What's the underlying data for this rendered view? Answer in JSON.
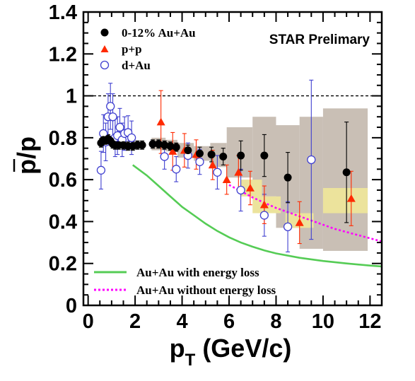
{
  "chart_data": {
    "type": "scatter",
    "annotation": "STAR Prelimary",
    "ylabel": "p/p",
    "xlabel_main": "p",
    "xlabel_sub": "T",
    "xlabel_rest": " (GeV/c)",
    "xlim": [
      -0.2,
      12.5
    ],
    "ylim": [
      0,
      1.4
    ],
    "xticks": [
      0,
      2,
      4,
      6,
      8,
      10,
      12
    ],
    "yticks": [
      0,
      0.2,
      0.4,
      0.6,
      0.8,
      1,
      1.2,
      1.4
    ],
    "ytick_labels": [
      "0",
      "0.2",
      "0.4",
      "0.6",
      "0.8",
      "1",
      "1.2",
      "1.4"
    ],
    "reference_line_y": 1.0,
    "grid": false,
    "legend_position": "top-left",
    "series": [
      {
        "name": "0-12% Au+Au",
        "marker": "filled-circle",
        "color": "#000000",
        "points": [
          {
            "x": 0.55,
            "y": 0.775,
            "err": 0.02
          },
          {
            "x": 0.65,
            "y": 0.79,
            "err": 0.02
          },
          {
            "x": 0.75,
            "y": 0.785,
            "err": 0.02
          },
          {
            "x": 0.85,
            "y": 0.795,
            "err": 0.02
          },
          {
            "x": 0.95,
            "y": 0.785,
            "err": 0.02
          },
          {
            "x": 1.05,
            "y": 0.77,
            "err": 0.02
          },
          {
            "x": 1.15,
            "y": 0.765,
            "err": 0.02
          },
          {
            "x": 1.3,
            "y": 0.765,
            "err": 0.02
          },
          {
            "x": 1.5,
            "y": 0.765,
            "err": 0.02
          },
          {
            "x": 1.7,
            "y": 0.76,
            "err": 0.02
          },
          {
            "x": 1.9,
            "y": 0.76,
            "err": 0.02
          },
          {
            "x": 2.1,
            "y": 0.765,
            "err": 0.02
          },
          {
            "x": 2.3,
            "y": 0.765,
            "err": 0.02
          },
          {
            "x": 2.75,
            "y": 0.77,
            "err": 0.02
          },
          {
            "x": 3.0,
            "y": 0.77,
            "err": 0.02
          },
          {
            "x": 3.25,
            "y": 0.765,
            "err": 0.02
          },
          {
            "x": 3.5,
            "y": 0.76,
            "err": 0.02
          },
          {
            "x": 3.75,
            "y": 0.755,
            "err": 0.02
          },
          {
            "x": 4.25,
            "y": 0.74,
            "err": 0.025
          },
          {
            "x": 4.75,
            "y": 0.725,
            "err": 0.03
          },
          {
            "x": 5.25,
            "y": 0.72,
            "err": 0.035
          },
          {
            "x": 5.75,
            "y": 0.71,
            "err": 0.04
          },
          {
            "x": 6.5,
            "y": 0.715,
            "err": 0.07
          },
          {
            "x": 7.5,
            "y": 0.715,
            "err": 0.1
          },
          {
            "x": 8.5,
            "y": 0.61,
            "err": 0.12
          },
          {
            "x": 11.0,
            "y": 0.635,
            "err": 0.24
          }
        ]
      },
      {
        "name": "p+p",
        "marker": "filled-triangle",
        "color": "#ff2a00",
        "points": [
          {
            "x": 3.1,
            "y": 0.875,
            "err": 0.15
          },
          {
            "x": 3.6,
            "y": 0.735,
            "err": 0.09
          },
          {
            "x": 4.1,
            "y": 0.74,
            "err": 0.08
          },
          {
            "x": 4.6,
            "y": 0.72,
            "err": 0.07
          },
          {
            "x": 5.3,
            "y": 0.67,
            "err": 0.07
          },
          {
            "x": 5.9,
            "y": 0.6,
            "err": 0.07
          },
          {
            "x": 6.4,
            "y": 0.635,
            "err": 0.08
          },
          {
            "x": 6.9,
            "y": 0.56,
            "err": 0.08
          },
          {
            "x": 7.5,
            "y": 0.48,
            "err": 0.09
          },
          {
            "x": 9.0,
            "y": 0.395,
            "err": 0.1
          },
          {
            "x": 11.2,
            "y": 0.51,
            "err": 0.13
          }
        ]
      },
      {
        "name": "d+Au",
        "marker": "open-circle",
        "color": "#4040d0",
        "points": [
          {
            "x": 0.55,
            "y": 0.645,
            "err": 0.09
          },
          {
            "x": 0.65,
            "y": 0.82,
            "err": 0.09
          },
          {
            "x": 0.75,
            "y": 0.78,
            "err": 0.09
          },
          {
            "x": 0.85,
            "y": 0.9,
            "err": 0.11
          },
          {
            "x": 0.95,
            "y": 0.95,
            "err": 0.11
          },
          {
            "x": 1.05,
            "y": 0.9,
            "err": 0.11
          },
          {
            "x": 1.15,
            "y": 0.8,
            "err": 0.09
          },
          {
            "x": 1.25,
            "y": 0.81,
            "err": 0.09
          },
          {
            "x": 1.35,
            "y": 0.85,
            "err": 0.09
          },
          {
            "x": 1.45,
            "y": 0.79,
            "err": 0.08
          },
          {
            "x": 1.55,
            "y": 0.82,
            "err": 0.08
          },
          {
            "x": 1.7,
            "y": 0.825,
            "err": 0.08
          },
          {
            "x": 1.85,
            "y": 0.8,
            "err": 0.08
          },
          {
            "x": 3.25,
            "y": 0.71,
            "err": 0.06
          },
          {
            "x": 3.75,
            "y": 0.65,
            "err": 0.06
          },
          {
            "x": 4.25,
            "y": 0.715,
            "err": 0.06
          },
          {
            "x": 4.75,
            "y": 0.685,
            "err": 0.06
          },
          {
            "x": 5.5,
            "y": 0.635,
            "err": 0.08
          },
          {
            "x": 6.5,
            "y": 0.55,
            "err": 0.1
          },
          {
            "x": 7.5,
            "y": 0.43,
            "err": 0.1
          },
          {
            "x": 8.5,
            "y": 0.375,
            "err": 0.12
          },
          {
            "x": 9.5,
            "y": 0.695,
            "err": 0.38
          }
        ]
      }
    ],
    "systematic_boxes_gray": [
      {
        "x1": 2.7,
        "x2": 3.3,
        "ylow": 0.74,
        "yhigh": 0.8
      },
      {
        "x1": 3.3,
        "x2": 3.8,
        "ylow": 0.735,
        "yhigh": 0.79
      },
      {
        "x1": 3.8,
        "x2": 4.5,
        "ylow": 0.705,
        "yhigh": 0.775
      },
      {
        "x1": 4.5,
        "x2": 5.2,
        "ylow": 0.69,
        "yhigh": 0.76
      },
      {
        "x1": 5.2,
        "x2": 5.9,
        "ylow": 0.66,
        "yhigh": 0.775
      },
      {
        "x1": 5.9,
        "x2": 7.0,
        "ylow": 0.61,
        "yhigh": 0.85
      },
      {
        "x1": 7.0,
        "x2": 8.0,
        "ylow": 0.52,
        "yhigh": 0.9
      },
      {
        "x1": 8.0,
        "x2": 9.0,
        "ylow": 0.37,
        "yhigh": 0.86
      },
      {
        "x1": 9.0,
        "x2": 10.0,
        "ylow": 0.27,
        "yhigh": 0.9
      },
      {
        "x1": 10.0,
        "x2": 11.9,
        "ylow": 0.26,
        "yhigh": 0.94
      }
    ],
    "systematic_boxes_yellow": [
      {
        "x1": 6.5,
        "x2": 7.4,
        "ylow": 0.52,
        "yhigh": 0.6
      },
      {
        "x1": 7.0,
        "x2": 8.2,
        "ylow": 0.44,
        "yhigh": 0.52
      },
      {
        "x1": 8.4,
        "x2": 9.6,
        "ylow": 0.37,
        "yhigh": 0.44
      },
      {
        "x1": 10.0,
        "x2": 11.9,
        "ylow": 0.44,
        "yhigh": 0.56
      }
    ],
    "curves": [
      {
        "name": "Au+Au with energy loss",
        "style": "solid",
        "color": "#55cc55",
        "points": [
          [
            1.9,
            0.67
          ],
          [
            2.5,
            0.62
          ],
          [
            3.0,
            0.57
          ],
          [
            3.5,
            0.52
          ],
          [
            4.0,
            0.47
          ],
          [
            4.5,
            0.43
          ],
          [
            5.0,
            0.39
          ],
          [
            5.5,
            0.355
          ],
          [
            6.0,
            0.325
          ],
          [
            6.5,
            0.3
          ],
          [
            7.0,
            0.28
          ],
          [
            7.5,
            0.262
          ],
          [
            8.0,
            0.248
          ],
          [
            9.0,
            0.227
          ],
          [
            10.0,
            0.212
          ],
          [
            11.0,
            0.2
          ],
          [
            12.0,
            0.19
          ],
          [
            12.5,
            0.186
          ]
        ]
      },
      {
        "name": "Au+Au without energy loss",
        "style": "dotted",
        "color": "#ff00ff",
        "points": [
          [
            6.0,
            0.575
          ],
          [
            6.5,
            0.545
          ],
          [
            7.0,
            0.515
          ],
          [
            7.5,
            0.49
          ],
          [
            8.0,
            0.465
          ],
          [
            8.5,
            0.445
          ],
          [
            9.0,
            0.425
          ],
          [
            9.5,
            0.405
          ],
          [
            10.0,
            0.385
          ],
          [
            10.5,
            0.365
          ],
          [
            11.0,
            0.35
          ],
          [
            11.5,
            0.335
          ],
          [
            12.0,
            0.32
          ],
          [
            12.5,
            0.305
          ]
        ]
      }
    ]
  }
}
